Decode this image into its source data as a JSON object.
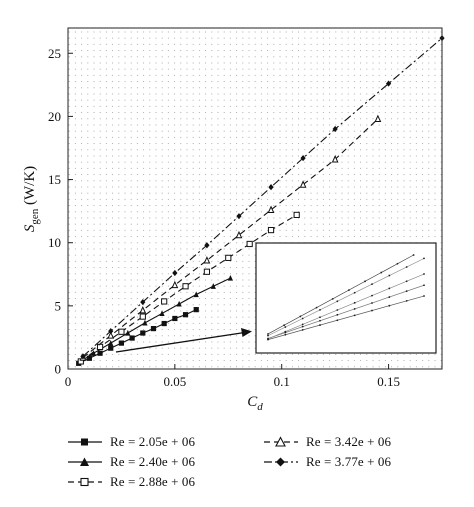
{
  "chart_data": {
    "type": "line",
    "title": "",
    "xlabel": "C",
    "xlabel_sub": "d",
    "ylabel": "S",
    "ylabel_sub": "gen",
    "ylabel_unit": " (W/K)",
    "xlim": [
      0,
      0.175
    ],
    "ylim": [
      0,
      27
    ],
    "xticks": [
      0,
      0.05,
      0.1,
      0.15
    ],
    "xtick_labels": [
      "0",
      "0.05",
      "0.1",
      "0.15"
    ],
    "yticks": [
      0,
      5,
      10,
      15,
      20,
      25
    ],
    "ytick_labels": [
      "0",
      "5",
      "10",
      "15",
      "20",
      "25"
    ],
    "grid": true,
    "legend_position": "bottom",
    "series": [
      {
        "name": "Re = 2.05e + 06",
        "marker": "square-filled",
        "dash": "solid",
        "x": [
          0.005,
          0.01,
          0.015,
          0.02,
          0.025,
          0.03,
          0.035,
          0.04,
          0.045,
          0.05,
          0.055,
          0.06
        ],
        "y": [
          0.45,
          0.85,
          1.25,
          1.65,
          2.05,
          2.45,
          2.85,
          3.2,
          3.6,
          4.0,
          4.3,
          4.7
        ]
      },
      {
        "name": "Re = 2.40e + 06",
        "marker": "triangle-filled",
        "dash": "solid",
        "x": [
          0.005,
          0.012,
          0.02,
          0.028,
          0.036,
          0.044,
          0.052,
          0.06,
          0.068,
          0.076
        ],
        "y": [
          0.5,
          1.25,
          2.05,
          2.85,
          3.65,
          4.4,
          5.15,
          5.9,
          6.55,
          7.2
        ]
      },
      {
        "name": "Re = 2.88e + 06",
        "marker": "square-open",
        "dash": "dashed",
        "x": [
          0.006,
          0.015,
          0.025,
          0.035,
          0.045,
          0.055,
          0.065,
          0.075,
          0.085,
          0.095,
          0.107
        ],
        "y": [
          0.6,
          1.75,
          2.95,
          4.15,
          5.35,
          6.55,
          7.7,
          8.8,
          9.9,
          11.0,
          12.2
        ]
      },
      {
        "name": "Re = 3.42e + 06",
        "marker": "triangle-open",
        "dash": "dashed",
        "x": [
          0.007,
          0.02,
          0.035,
          0.05,
          0.065,
          0.08,
          0.095,
          0.11,
          0.125,
          0.145
        ],
        "y": [
          0.9,
          2.65,
          4.65,
          6.65,
          8.6,
          10.6,
          12.6,
          14.6,
          16.6,
          19.8
        ]
      },
      {
        "name": "Re = 3.77e + 06",
        "marker": "diamond-filled",
        "dash": "dashdot",
        "x": [
          0.007,
          0.02,
          0.035,
          0.05,
          0.065,
          0.08,
          0.095,
          0.11,
          0.125,
          0.15,
          0.175
        ],
        "y": [
          1.0,
          3.0,
          5.3,
          7.6,
          9.8,
          12.1,
          14.4,
          16.7,
          19.0,
          22.6,
          26.2
        ]
      }
    ]
  }
}
